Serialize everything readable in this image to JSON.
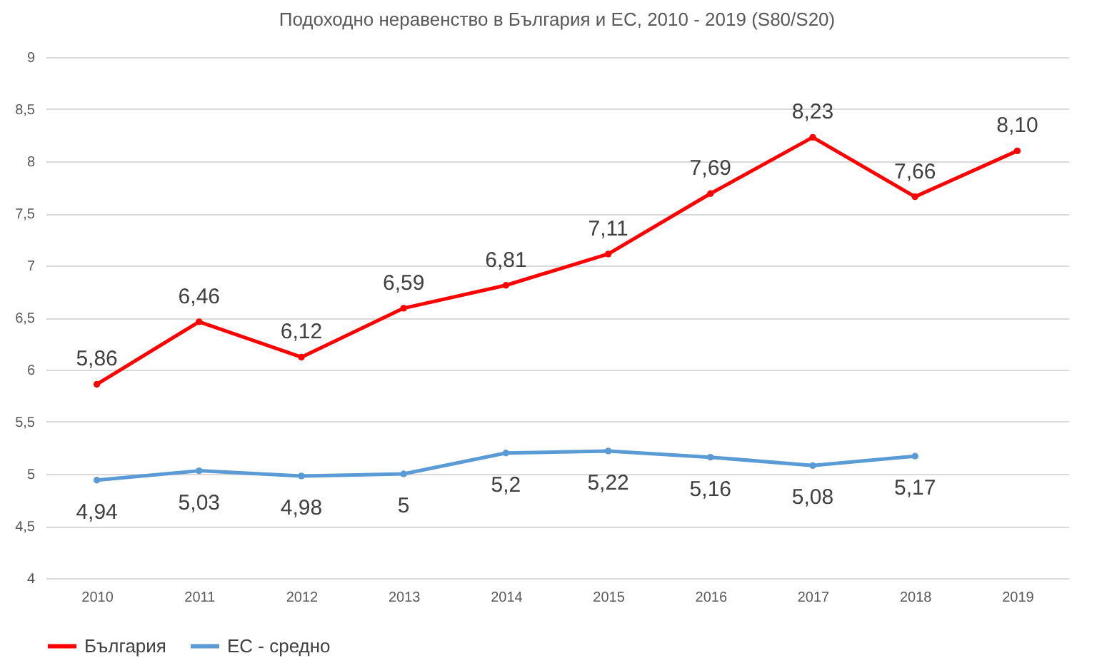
{
  "chart_data": {
    "type": "line",
    "title": "Подоходно неравенство в България и ЕС, 2010 - 2019 (S80/S20)",
    "categories": [
      "2010",
      "2011",
      "2012",
      "2013",
      "2014",
      "2015",
      "2016",
      "2017",
      "2018",
      "2019"
    ],
    "series": [
      {
        "name": "България",
        "color": "#ff0000",
        "values": [
          5.86,
          6.46,
          6.12,
          6.59,
          6.81,
          7.11,
          7.69,
          8.23,
          7.66,
          8.1
        ],
        "value_labels": [
          "5,86",
          "6,46",
          "6,12",
          "6,59",
          "6,81",
          "7,11",
          "7,69",
          "8,23",
          "7,66",
          "8,10"
        ]
      },
      {
        "name": "ЕС - средно",
        "color": "#5b9bd5",
        "values": [
          4.94,
          5.03,
          4.98,
          5,
          5.2,
          5.22,
          5.16,
          5.08,
          5.17,
          null
        ],
        "value_labels": [
          "4,94",
          "5,03",
          "4,98",
          "5",
          "5,2",
          "5,22",
          "5,16",
          "5,08",
          "5,17",
          null
        ]
      }
    ],
    "ylim": [
      4,
      9
    ],
    "yticks": [
      4,
      {
        "value": 4.5,
        "label": "4,5"
      },
      5,
      {
        "value": 5.5,
        "label": "5,5"
      },
      6,
      {
        "value": 6.5,
        "label": "6,5"
      },
      7,
      {
        "value": 7.5,
        "label": "7,5"
      },
      8,
      {
        "value": 8.5,
        "label": "8,5"
      },
      9
    ],
    "grid": "y",
    "legend": "bottom",
    "marker": "circle",
    "line_style": "solid"
  }
}
